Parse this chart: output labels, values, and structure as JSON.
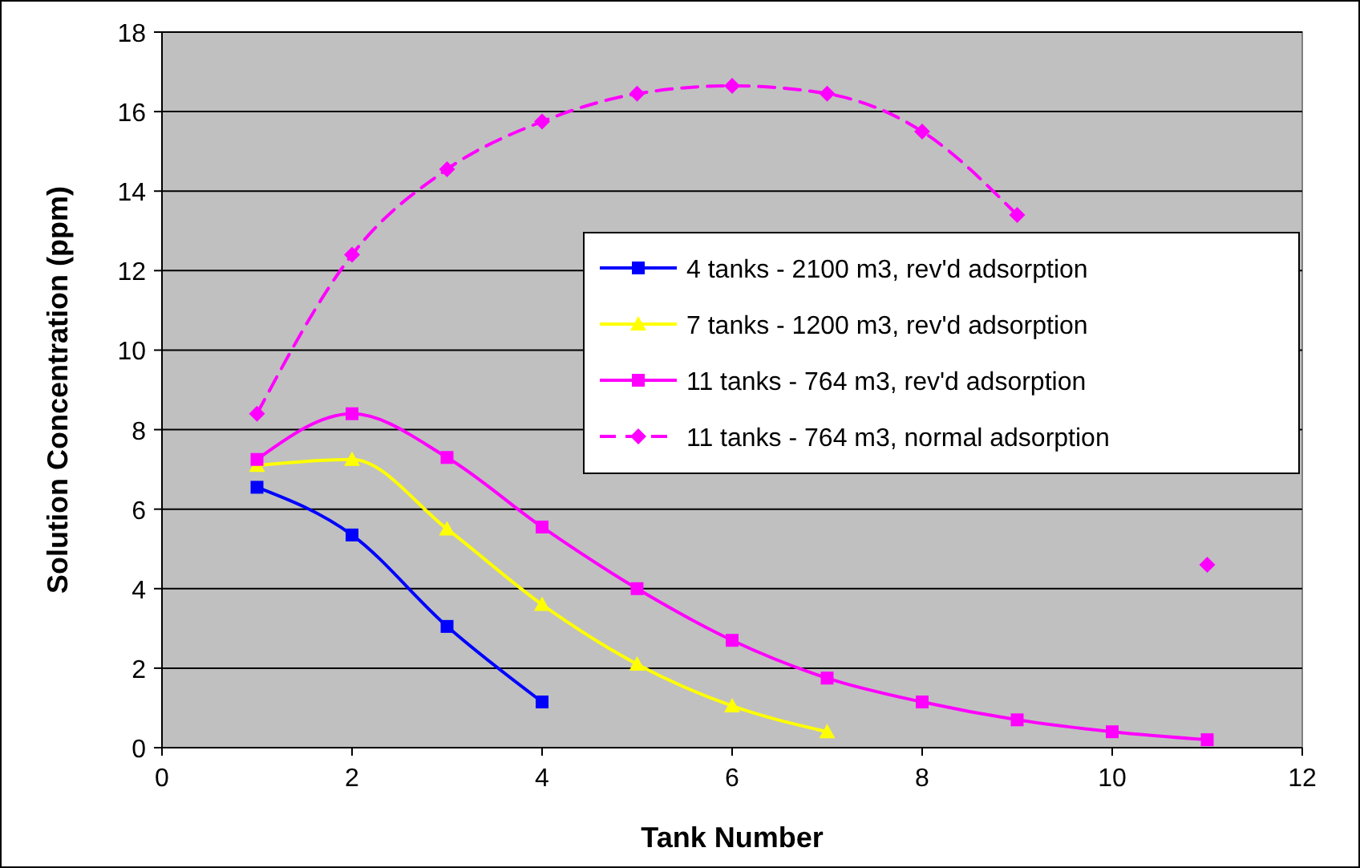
{
  "chart_data": {
    "type": "line",
    "xlabel": "Tank Number",
    "ylabel": "Solution Concentration (ppm)",
    "xlim": [
      0,
      12
    ],
    "xticks": [
      0,
      2,
      4,
      6,
      8,
      10,
      12
    ],
    "ylim": [
      0,
      18
    ],
    "yticks": [
      0,
      2,
      4,
      6,
      8,
      10,
      12,
      14,
      16,
      18
    ],
    "grid": "y",
    "legend": "right",
    "series": [
      {
        "name": "4 tanks - 2100 m3, rev'd adsorption",
        "color": "#0000ff",
        "marker": "square",
        "line_style": "solid",
        "x": [
          1,
          2,
          3,
          4
        ],
        "values": [
          6.55,
          5.35,
          3.05,
          1.15
        ]
      },
      {
        "name": "7 tanks - 1200 m3, rev'd adsorption",
        "color": "#ffff00",
        "marker": "triangle",
        "line_style": "solid",
        "x": [
          1,
          2,
          3,
          4,
          5,
          6,
          7
        ],
        "values": [
          7.1,
          7.25,
          5.5,
          3.6,
          2.1,
          1.05,
          0.4
        ]
      },
      {
        "name": "11 tanks - 764 m3, rev'd adsorption",
        "color": "#ff00ff",
        "marker": "square",
        "line_style": "solid",
        "x": [
          1,
          2,
          3,
          4,
          5,
          6,
          7,
          8,
          9,
          10,
          11
        ],
        "values": [
          7.25,
          8.4,
          7.3,
          5.55,
          4.0,
          2.7,
          1.75,
          1.15,
          0.7,
          0.4,
          0.2
        ]
      },
      {
        "name": "11 tanks - 764 m3, normal adsorption",
        "color": "#ff00ff",
        "marker": "diamond",
        "line_style": "dashed",
        "x": [
          1,
          2,
          3,
          4,
          5,
          6,
          7,
          8,
          9,
          10,
          11
        ],
        "values": [
          8.4,
          12.4,
          14.55,
          15.75,
          16.45,
          16.65,
          16.45,
          15.5,
          13.4,
          null,
          4.6
        ]
      }
    ]
  }
}
